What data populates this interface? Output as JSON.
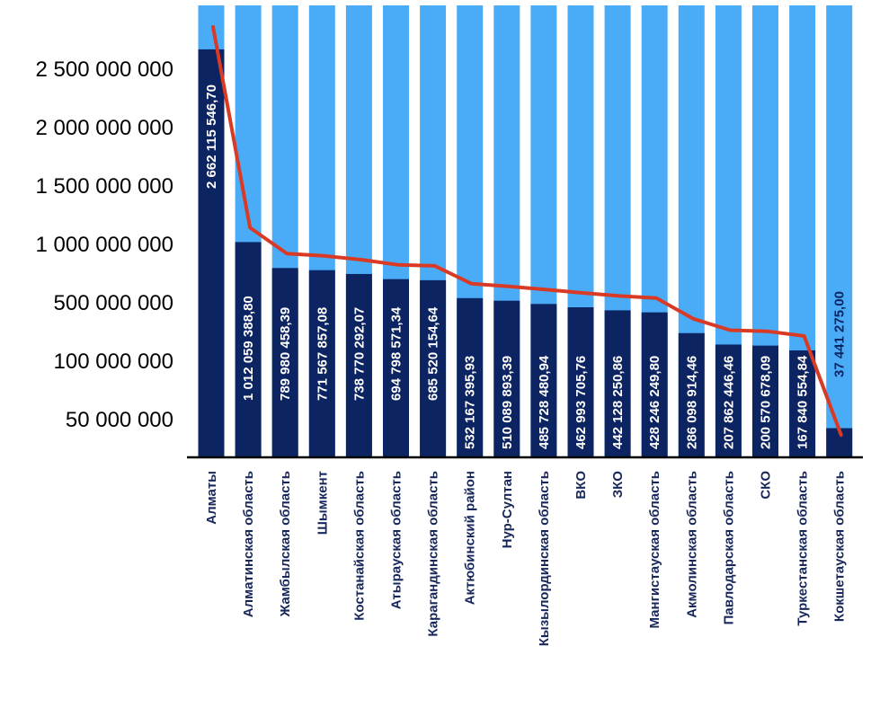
{
  "chart_data": {
    "type": "bar",
    "title": "",
    "xlabel": "",
    "ylabel": "",
    "y_tick_labels": [
      "2 500 000 000",
      "2 000 000 000",
      "1 500 000 000",
      "1 000 000 000",
      "500 000 000",
      "100 000 000",
      "50 000 000"
    ],
    "categories": [
      "Алматы",
      "Алматинская область",
      "Жамбылская область",
      "Шымкент",
      "Костанайская область",
      "Атырауская область",
      "Карагандинская область",
      "Актюбинский район",
      "Нур-Султан",
      "Кызылординская область",
      "ВКО",
      "ЗКО",
      "Мангистауская область",
      "Акмолинская область",
      "Павлодарская область",
      "СКО",
      "Туркестанская область",
      "Кокшетауская область"
    ],
    "values": [
      2662115546.7,
      1012059388.8,
      789980458.39,
      771567857.08,
      738770292.07,
      694798571.34,
      685520154.64,
      532167395.93,
      510089893.39,
      485728480.94,
      462993705.76,
      442128250.86,
      428246249.8,
      286098914.46,
      207862446.46,
      200570678.09,
      167840554.84,
      37441275.0
    ],
    "value_labels": [
      "2 662 115 546,70",
      "1 012 059 388,80",
      "789 980 458,39",
      "771 567 857,08",
      "738 770 292,07",
      "694 798 571,34",
      "685 520 154,64",
      "532 167 395,93",
      "510 089 893,39",
      "485 728 480,94",
      "462 993 705,76",
      "442 128 250,86",
      "428 246 249,80",
      "286 098 914,46",
      "207 862 446,46",
      "200 570 678,09",
      "167 840 554,84",
      "37 441 275,00"
    ],
    "trend_line": true,
    "grid": false,
    "legend": "none",
    "colors": {
      "bar": "#0c2461",
      "background_bar": "#4aabf7",
      "trend": "#d93a26",
      "axis": "#000000",
      "category_text": "#17275a",
      "value_text": "#ffffff"
    }
  }
}
